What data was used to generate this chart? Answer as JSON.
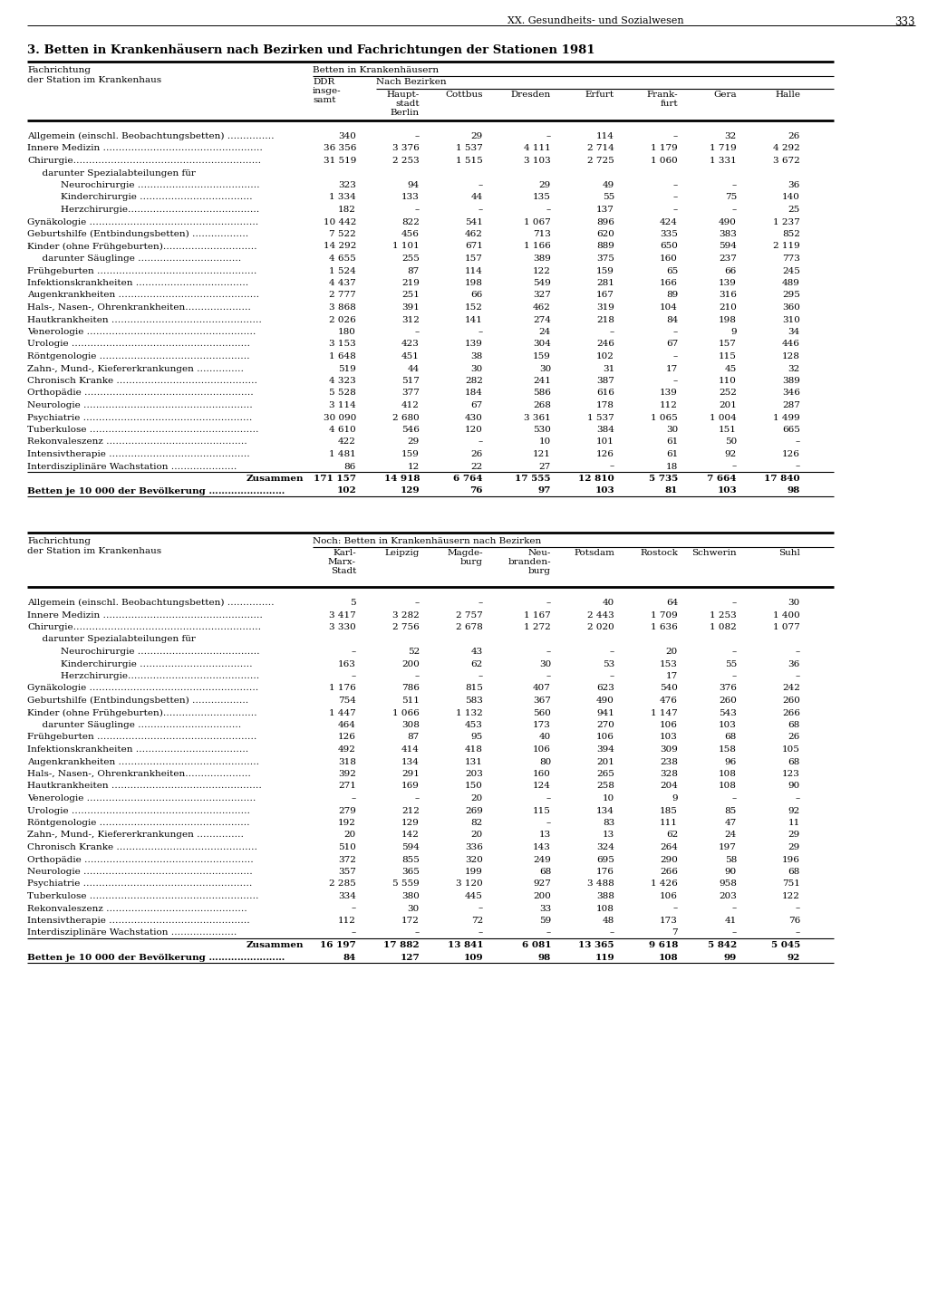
{
  "page_header_right": "XX. Gesundheits- und Sozialwesen",
  "page_number": "333",
  "title": "3. Betten in Krankenhäusern nach Bezirken und Fachrichtungen der Stationen 1981",
  "table1_rows": [
    [
      "Allgemein (einschl. Beobachtungsbetten) ……………",
      "340",
      "–",
      "29",
      "–",
      "114",
      "–",
      "32",
      "26"
    ],
    [
      "Innere Medizin ……………………………………………",
      "36 356",
      "3 376",
      "1 537",
      "4 111",
      "2 714",
      "1 179",
      "1 719",
      "4 292"
    ],
    [
      "Chirurgie……………………………………………………",
      "31 519",
      "2 253",
      "1 515",
      "3 103",
      "2 725",
      "1 060",
      "1 331",
      "3 672"
    ],
    [
      "  darunter Spezialabteilungen für",
      "",
      "",
      "",
      "",
      "",
      "",
      "",
      ""
    ],
    [
      "    Neurochirurgie …………………………………",
      "323",
      "94",
      "–",
      "29",
      "49",
      "–",
      "–",
      "36"
    ],
    [
      "    Kinderchirurgie ………………………………",
      "1 334",
      "133",
      "44",
      "135",
      "55",
      "–",
      "75",
      "140"
    ],
    [
      "    Herzchirurgie……………………………………",
      "182",
      "–",
      "–",
      "–",
      "137",
      "–",
      "–",
      "25"
    ],
    [
      "Gynäkologie ………………………………………………",
      "10 442",
      "822",
      "541",
      "1 067",
      "896",
      "424",
      "490",
      "1 237"
    ],
    [
      "Geburtshilfe (Entbindungsbetten) ………………",
      "7 522",
      "456",
      "462",
      "713",
      "620",
      "335",
      "383",
      "852"
    ],
    [
      "Kinder (ohne Frühgeburten)…………………………",
      "14 292",
      "1 101",
      "671",
      "1 166",
      "889",
      "650",
      "594",
      "2 119"
    ],
    [
      "  darunter Säuglinge ……………………………",
      "4 655",
      "255",
      "157",
      "389",
      "375",
      "160",
      "237",
      "773"
    ],
    [
      "Frühgeburten ……………………………………………",
      "1 524",
      "87",
      "114",
      "122",
      "159",
      "65",
      "66",
      "245"
    ],
    [
      "Infektionskrankheiten ………………………………",
      "4 437",
      "219",
      "198",
      "549",
      "281",
      "166",
      "139",
      "489"
    ],
    [
      "Augenkrankheiten ………………………………………",
      "2 777",
      "251",
      "66",
      "327",
      "167",
      "89",
      "316",
      "295"
    ],
    [
      "Hals-, Nasen-, Ohrenkrankheiten…………………",
      "3 868",
      "391",
      "152",
      "462",
      "319",
      "104",
      "210",
      "360"
    ],
    [
      "Hautkrankheiten …………………………………………",
      "2 026",
      "312",
      "141",
      "274",
      "218",
      "84",
      "198",
      "310"
    ],
    [
      "Venerologie ………………………………………………",
      "180",
      "–",
      "–",
      "24",
      "–",
      "–",
      "9",
      "34"
    ],
    [
      "Urologie …………………………………………………",
      "3 153",
      "423",
      "139",
      "304",
      "246",
      "67",
      "157",
      "446"
    ],
    [
      "Röntgenologie …………………………………………",
      "1 648",
      "451",
      "38",
      "159",
      "102",
      "–",
      "115",
      "128"
    ],
    [
      "Zahn-, Mund-, Kiefererkrankungen ……………",
      "519",
      "44",
      "30",
      "30",
      "31",
      "17",
      "45",
      "32"
    ],
    [
      "Chronisch Kranke ………………………………………",
      "4 323",
      "517",
      "282",
      "241",
      "387",
      "–",
      "110",
      "389"
    ],
    [
      "Orthopädie ………………………………………………",
      "5 528",
      "377",
      "184",
      "586",
      "616",
      "139",
      "252",
      "346"
    ],
    [
      "Neurologie ………………………………………………",
      "3 114",
      "412",
      "67",
      "268",
      "178",
      "112",
      "201",
      "287"
    ],
    [
      "Psychiatrie ………………………………………………",
      "30 090",
      "2 680",
      "430",
      "3 361",
      "1 537",
      "1 065",
      "1 004",
      "1 499"
    ],
    [
      "Tuberkulose ………………………………………………",
      "4 610",
      "546",
      "120",
      "530",
      "384",
      "30",
      "151",
      "665"
    ],
    [
      "Rekonvaleszenz ………………………………………",
      "422",
      "29",
      "–",
      "10",
      "101",
      "61",
      "50",
      "–"
    ],
    [
      "Intensivtherapie ………………………………………",
      "1 481",
      "159",
      "26",
      "121",
      "126",
      "61",
      "92",
      "126"
    ],
    [
      "Interdisziplinäre Wachstation …………………",
      "86",
      "12",
      "22",
      "27",
      "–",
      "18",
      "–",
      "–"
    ],
    [
      "Zusammen",
      "171 157",
      "14 918",
      "6 764",
      "17 555",
      "12 810",
      "5 735",
      "7 664",
      "17 840"
    ],
    [
      "Betten je 10 000 der Bevölkerung ……………………",
      "102",
      "129",
      "76",
      "97",
      "103",
      "81",
      "103",
      "98"
    ]
  ],
  "table2_rows": [
    [
      "Allgemein (einschl. Beobachtungsbetten) ……………",
      "5",
      "–",
      "–",
      "–",
      "40",
      "64",
      "–",
      "30"
    ],
    [
      "Innere Medizin ……………………………………………",
      "3 417",
      "3 282",
      "2 757",
      "1 167",
      "2 443",
      "1 709",
      "1 253",
      "1 400"
    ],
    [
      "Chirurgie……………………………………………………",
      "3 330",
      "2 756",
      "2 678",
      "1 272",
      "2 020",
      "1 636",
      "1 082",
      "1 077"
    ],
    [
      "  darunter Spezialabteilungen für",
      "",
      "",
      "",
      "",
      "",
      "",
      "",
      ""
    ],
    [
      "    Neurochirurgie …………………………………",
      "–",
      "52",
      "43",
      "–",
      "–",
      "20",
      "–",
      "–"
    ],
    [
      "    Kinderchirurgie ………………………………",
      "163",
      "200",
      "62",
      "30",
      "53",
      "153",
      "55",
      "36"
    ],
    [
      "    Herzchirurgie……………………………………",
      "–",
      "–",
      "–",
      "–",
      "–",
      "17",
      "–",
      "–"
    ],
    [
      "Gynäkologie ………………………………………………",
      "1 176",
      "786",
      "815",
      "407",
      "623",
      "540",
      "376",
      "242"
    ],
    [
      "Geburtshilfe (Entbindungsbetten) ………………",
      "754",
      "511",
      "583",
      "367",
      "490",
      "476",
      "260",
      "260"
    ],
    [
      "Kinder (ohne Frühgeburten)…………………………",
      "1 447",
      "1 066",
      "1 132",
      "560",
      "941",
      "1 147",
      "543",
      "266"
    ],
    [
      "  darunter Säuglinge ……………………………",
      "464",
      "308",
      "453",
      "173",
      "270",
      "106",
      "103",
      "68"
    ],
    [
      "Frühgeburten ……………………………………………",
      "126",
      "87",
      "95",
      "40",
      "106",
      "103",
      "68",
      "26"
    ],
    [
      "Infektionskrankheiten ………………………………",
      "492",
      "414",
      "418",
      "106",
      "394",
      "309",
      "158",
      "105"
    ],
    [
      "Augenkrankheiten ………………………………………",
      "318",
      "134",
      "131",
      "80",
      "201",
      "238",
      "96",
      "68"
    ],
    [
      "Hals-, Nasen-, Ohrenkrankheiten…………………",
      "392",
      "291",
      "203",
      "160",
      "265",
      "328",
      "108",
      "123"
    ],
    [
      "Hautkrankheiten …………………………………………",
      "271",
      "169",
      "150",
      "124",
      "258",
      "204",
      "108",
      "90"
    ],
    [
      "Venerologie ………………………………………………",
      "–",
      "–",
      "20",
      "–",
      "10",
      "9",
      "–",
      "–"
    ],
    [
      "Urologie …………………………………………………",
      "279",
      "212",
      "269",
      "115",
      "134",
      "185",
      "85",
      "92"
    ],
    [
      "Röntgenologie …………………………………………",
      "192",
      "129",
      "82",
      "–",
      "83",
      "111",
      "47",
      "11"
    ],
    [
      "Zahn-, Mund-, Kiefererkrankungen ……………",
      "20",
      "142",
      "20",
      "13",
      "13",
      "62",
      "24",
      "29"
    ],
    [
      "Chronisch Kranke ………………………………………",
      "510",
      "594",
      "336",
      "143",
      "324",
      "264",
      "197",
      "29"
    ],
    [
      "Orthopädie ………………………………………………",
      "372",
      "855",
      "320",
      "249",
      "695",
      "290",
      "58",
      "196"
    ],
    [
      "Neurologie ………………………………………………",
      "357",
      "365",
      "199",
      "68",
      "176",
      "266",
      "90",
      "68"
    ],
    [
      "Psychiatrie ………………………………………………",
      "2 285",
      "5 559",
      "3 120",
      "927",
      "3 488",
      "1 426",
      "958",
      "751"
    ],
    [
      "Tuberkulose ………………………………………………",
      "334",
      "380",
      "445",
      "200",
      "388",
      "106",
      "203",
      "122"
    ],
    [
      "Rekonvaleszenz ………………………………………",
      "–",
      "30",
      "–",
      "33",
      "108",
      "–",
      "–",
      "–"
    ],
    [
      "Intensivtherapie ………………………………………",
      "112",
      "172",
      "72",
      "59",
      "48",
      "173",
      "41",
      "76"
    ],
    [
      "Interdisziplinäre Wachstation …………………",
      "–",
      "–",
      "–",
      "–",
      "–",
      "7",
      "–",
      "–"
    ],
    [
      "Zusammen",
      "16 197",
      "17 882",
      "13 841",
      "6 081",
      "13 365",
      "9 618",
      "5 842",
      "5 045"
    ],
    [
      "Betten je 10 000 der Bevölkerung ……………………",
      "84",
      "127",
      "109",
      "98",
      "119",
      "108",
      "99",
      "92"
    ]
  ],
  "t1_col_headers": [
    "DDR\ninsge-\nsamt",
    "Haupt-\nstadt\nBerlin",
    "Cottbus",
    "Dresden",
    "Erfurt",
    "Frank-\nfurt",
    "Gera",
    "Halle"
  ],
  "t2_col_headers": [
    "Karl-\nMarx-\nStadt",
    "Leipzig",
    "Magde-\nburg",
    "Neu-\nbranden-\nburg",
    "Potsdam",
    "Rostock",
    "Schwerin",
    "Suhl"
  ]
}
